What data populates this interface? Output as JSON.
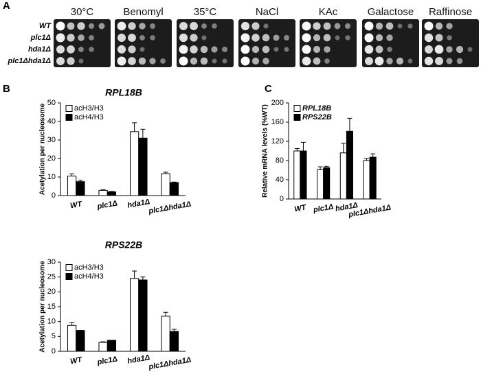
{
  "panel_a": {
    "label": "A",
    "conditions": [
      "30°C",
      "Benomyl",
      "35°C",
      "NaCl",
      "KAc",
      "Galactose",
      "Raffinose"
    ],
    "strains": [
      "WT",
      "plc1Δ",
      "hda1Δ",
      "plc1Δhda1Δ"
    ]
  },
  "chart_data": [
    {
      "type": "bar",
      "panel": "B",
      "title": "RPL18B",
      "y_label": "Acetylation per nucleosome",
      "categories": [
        "WT",
        "plc1Δ",
        "hda1Δ",
        "plc1Δhda1Δ"
      ],
      "series": [
        {
          "name": "acH3/H3",
          "color": "#ffffff",
          "values": [
            10.5,
            2.8,
            34.5,
            11.8
          ],
          "errors": [
            1.2,
            0.3,
            4.8,
            0.8
          ]
        },
        {
          "name": "acH4/H3",
          "color": "#000000",
          "values": [
            7.5,
            2,
            31,
            7
          ],
          "errors": [
            0.8,
            0.2,
            4.8,
            0.3
          ]
        }
      ],
      "ylim": [
        0,
        50
      ],
      "yticks": [
        0,
        10,
        20,
        30,
        40,
        50
      ],
      "legend": "upper-left"
    },
    {
      "type": "bar",
      "title": "RPS22B",
      "y_label": "Acetylation per nucleosome",
      "categories": [
        "WT",
        "plc1Δ",
        "hda1Δ",
        "plc1Δhda1Δ"
      ],
      "series": [
        {
          "name": "acH3/H3",
          "color": "#ffffff",
          "values": [
            8.7,
            3,
            24.5,
            11.8
          ],
          "errors": [
            0.9,
            0.2,
            2.5,
            1.3
          ]
        },
        {
          "name": "acH4/H3",
          "color": "#000000",
          "values": [
            7,
            3.7,
            24,
            6.7
          ],
          "errors": [
            0,
            0,
            1,
            0.7
          ]
        }
      ],
      "ylim": [
        0,
        30
      ],
      "yticks": [
        0,
        5,
        10,
        15,
        20,
        25,
        30
      ],
      "legend": "upper-left"
    },
    {
      "type": "bar",
      "panel": "C",
      "y_label": "Relative mRNA levels (%WT)",
      "categories": [
        "WT",
        "plc1Δ",
        "hda1Δ",
        "plc1Δhda1Δ"
      ],
      "series": [
        {
          "name": "RPL18B",
          "color": "#ffffff",
          "values": [
            100,
            61,
            96,
            80
          ],
          "errors": [
            5,
            6,
            20,
            4
          ]
        },
        {
          "name": "RPS22B",
          "color": "#000000",
          "values": [
            100,
            65,
            141,
            87
          ],
          "errors": [
            18,
            3,
            27,
            7
          ]
        }
      ],
      "ylim": [
        0,
        200
      ],
      "yticks": [
        0,
        40,
        80,
        120,
        160,
        200
      ],
      "legend": "upper-left"
    }
  ]
}
